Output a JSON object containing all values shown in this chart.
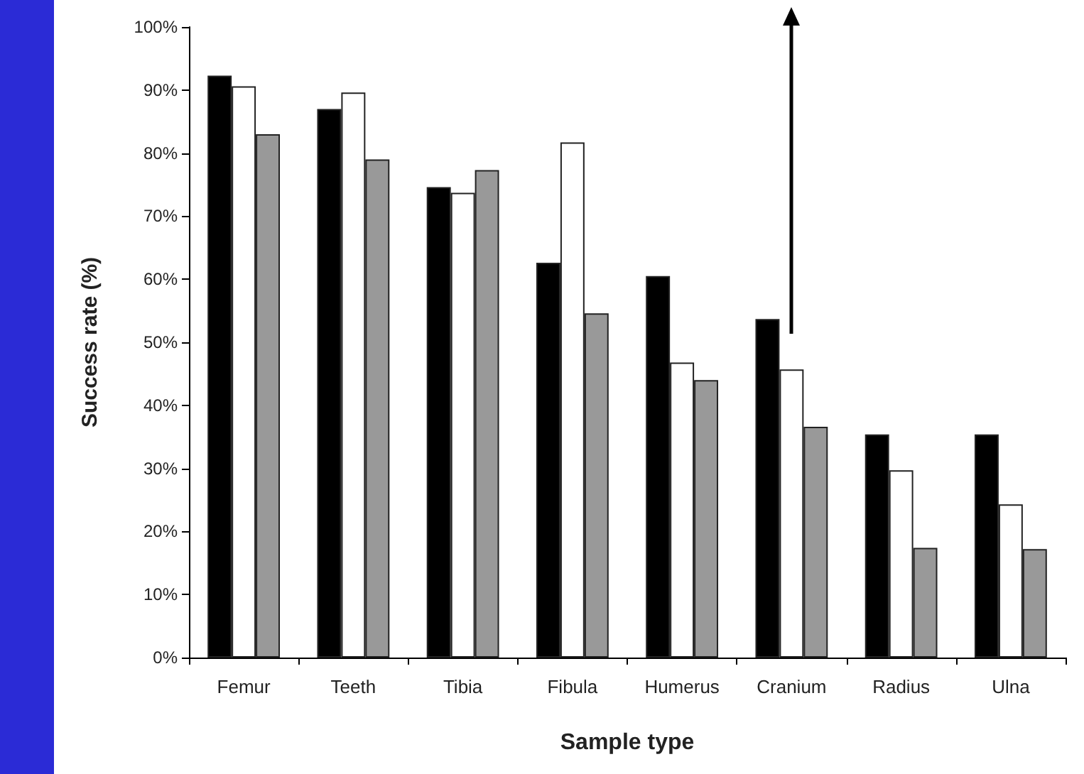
{
  "chart_data": {
    "type": "bar",
    "xlabel": "Sample type",
    "ylabel": "Success rate (%)",
    "categories": [
      "Femur",
      "Teeth",
      "Tibia",
      "Fibula",
      "Humerus",
      "Cranium",
      "Radius",
      "Ulna"
    ],
    "series": [
      {
        "color": "#000000",
        "values": [
          92.3,
          87,
          74.6,
          62.6,
          60.5,
          53.7,
          35.4,
          35.4
        ]
      },
      {
        "color": "#ffffff",
        "values": [
          90.6,
          89.6,
          73.7,
          81.7,
          46.8,
          45.7,
          29.7,
          24.3
        ]
      },
      {
        "color": "#999999",
        "values": [
          83,
          79,
          77.3,
          54.6,
          44,
          36.6,
          17.4,
          17.2
        ]
      }
    ],
    "ylim": [
      0,
      100
    ],
    "yticks": [
      {
        "value": 0,
        "label": "0%"
      },
      {
        "value": 10,
        "label": "10%"
      },
      {
        "value": 20,
        "label": "20%"
      },
      {
        "value": 30,
        "label": "30%"
      },
      {
        "value": 40,
        "label": "40%"
      },
      {
        "value": 50,
        "label": "50%"
      },
      {
        "value": 60,
        "label": "60%"
      },
      {
        "value": 70,
        "label": "70%"
      },
      {
        "value": 80,
        "label": "80%"
      },
      {
        "value": 90,
        "label": "90%"
      },
      {
        "value": 100,
        "label": "100%"
      }
    ],
    "grid": false
  }
}
